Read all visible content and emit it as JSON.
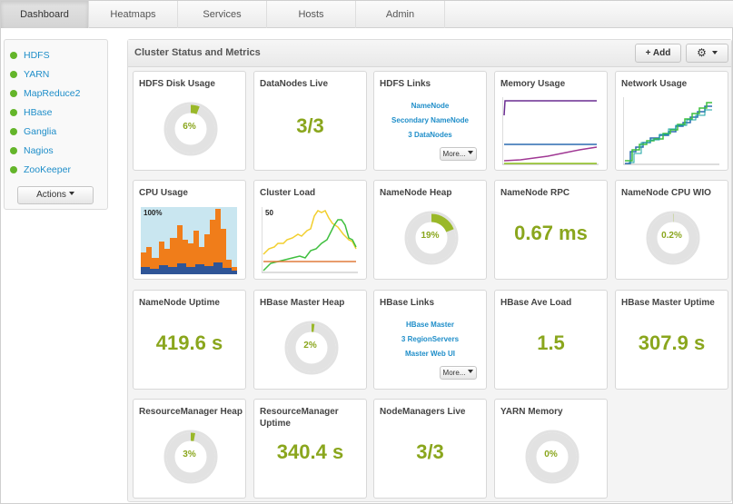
{
  "nav": {
    "tabs": [
      {
        "label": "Dashboard",
        "active": true
      },
      {
        "label": "Heatmaps",
        "active": false
      },
      {
        "label": "Services",
        "active": false
      },
      {
        "label": "Hosts",
        "active": false
      },
      {
        "label": "Admin",
        "active": false
      }
    ]
  },
  "sidebar": {
    "services": [
      {
        "label": "HDFS",
        "status": "green"
      },
      {
        "label": "YARN",
        "status": "green"
      },
      {
        "label": "MapReduce2",
        "status": "green"
      },
      {
        "label": "HBase",
        "status": "green"
      },
      {
        "label": "Ganglia",
        "status": "green"
      },
      {
        "label": "Nagios",
        "status": "green"
      },
      {
        "label": "ZooKeeper",
        "status": "green"
      }
    ],
    "actions_label": "Actions"
  },
  "panel": {
    "title": "Cluster Status and Metrics",
    "add_label": "Add"
  },
  "colors": {
    "accent_value": "#8aa61d",
    "link": "#1f8ec9",
    "status_green": "#64b52a",
    "gauge_fill": "#9ab829",
    "gauge_track": "#e2e2e2"
  },
  "widgets": {
    "hdfs_disk": {
      "title": "HDFS Disk Usage",
      "value": "6%",
      "percent": 6
    },
    "datanodes": {
      "title": "DataNodes Live",
      "value": "3/3"
    },
    "hdfs_links": {
      "title": "HDFS Links",
      "links": [
        "NameNode",
        "Secondary NameNode",
        "3 DataNodes"
      ],
      "more_label": "More..."
    },
    "memory": {
      "title": "Memory Usage"
    },
    "network": {
      "title": "Network Usage"
    },
    "cpu": {
      "title": "CPU Usage",
      "label": "100%"
    },
    "cluster_load": {
      "title": "Cluster Load",
      "label": "50"
    },
    "nn_heap": {
      "title": "NameNode Heap",
      "value": "19%",
      "percent": 19
    },
    "nn_rpc": {
      "title": "NameNode RPC",
      "value": "0.67 ms"
    },
    "nn_cpu": {
      "title": "NameNode CPU WIO",
      "value": "0.2%",
      "percent": 0.2
    },
    "nn_uptime": {
      "title": "NameNode Uptime",
      "value": "419.6 s"
    },
    "hbase_heap": {
      "title": "HBase Master Heap",
      "value": "2%",
      "percent": 2
    },
    "hbase_links": {
      "title": "HBase Links",
      "links": [
        "HBase Master",
        "3 RegionServers",
        "Master Web UI"
      ],
      "more_label": "More..."
    },
    "hbase_load": {
      "title": "HBase Ave Load",
      "value": "1.5"
    },
    "hbase_uptime": {
      "title": "HBase Master Uptime",
      "value": "307.9 s"
    },
    "rm_heap": {
      "title": "ResourceManager Heap",
      "value": "3%",
      "percent": 3
    },
    "rm_uptime": {
      "title": "ResourceManager Uptime",
      "value": "340.4 s"
    },
    "nm_live": {
      "title": "NodeManagers Live",
      "value": "3/3"
    },
    "yarn_memory": {
      "title": "YARN Memory",
      "value": "0%",
      "percent": 0
    }
  }
}
